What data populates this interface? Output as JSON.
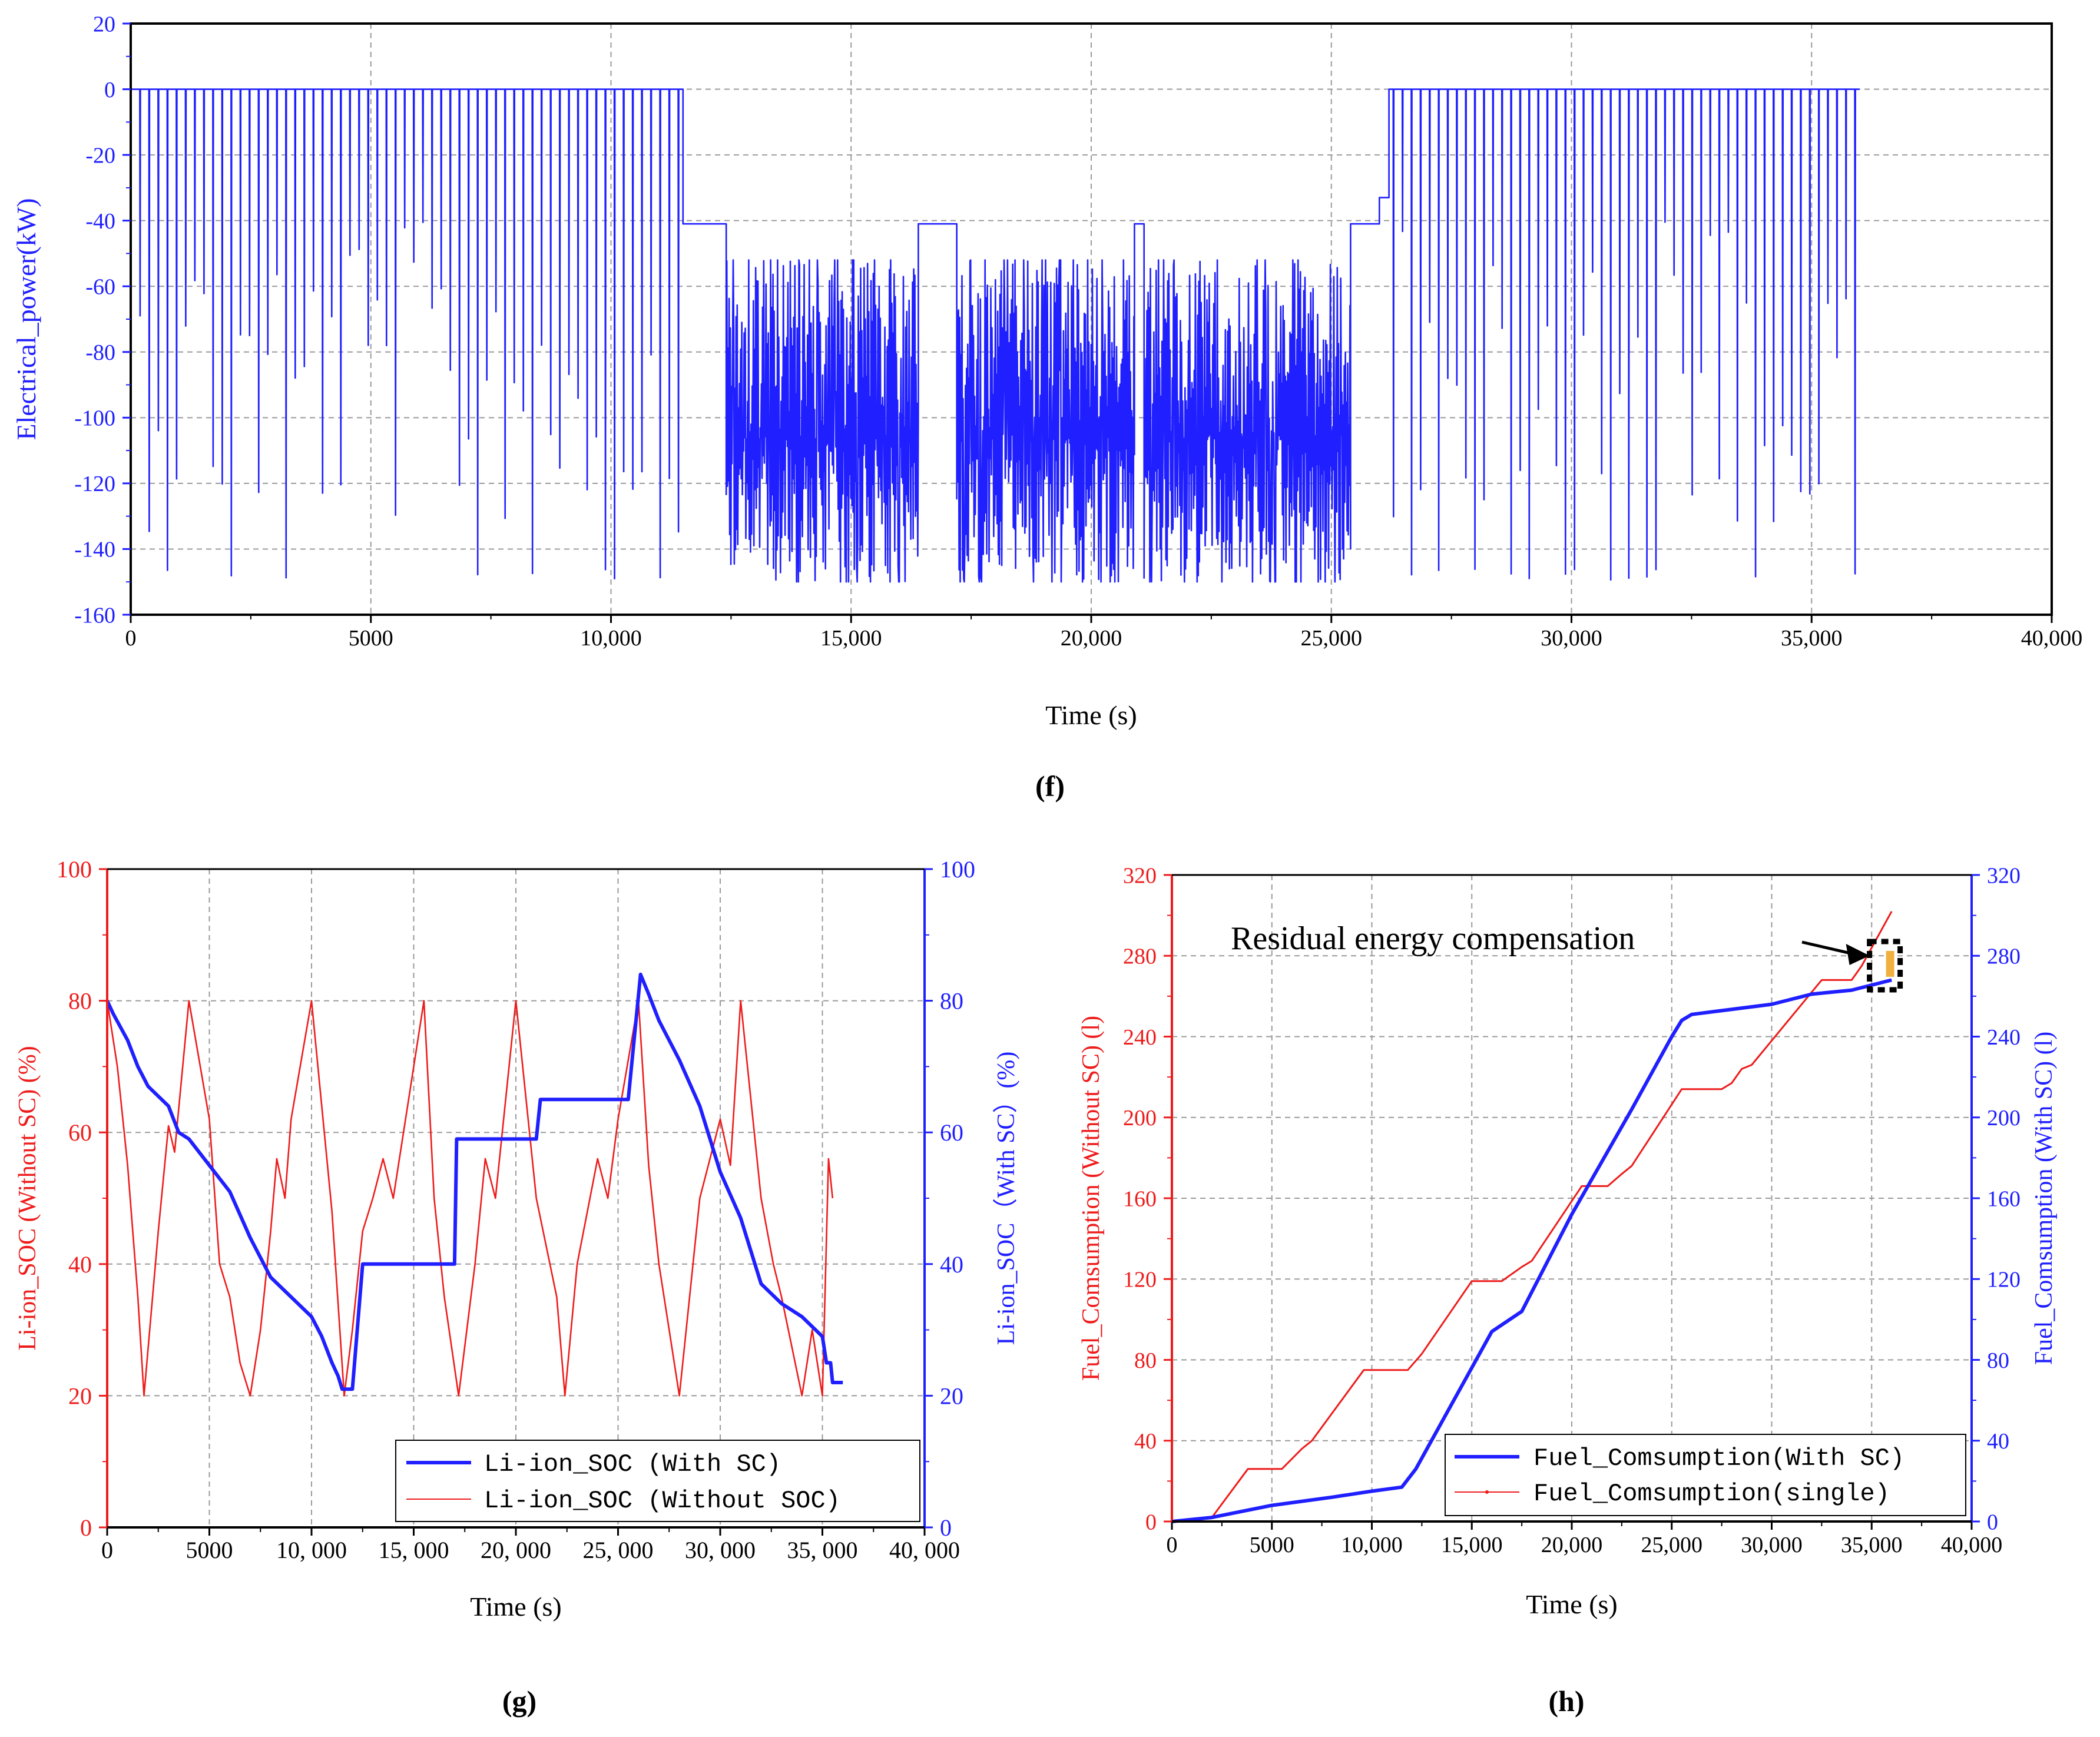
{
  "colors": {
    "red": "#ee1c1c",
    "blue": "#1f1fff",
    "black": "#000000",
    "grid": "#9a9a9a",
    "marker": "#f0b040"
  },
  "chart_data": [
    {
      "id": "f",
      "type": "line",
      "caption": "f",
      "xlabel": "Time (s)",
      "ylabel": "Electrical_power(kW)",
      "xlim": [
        0,
        40000
      ],
      "ylim": [
        -160,
        20
      ],
      "xticks": [
        0,
        5000,
        10000,
        15000,
        20000,
        25000,
        30000,
        35000,
        40000
      ],
      "xtick_labels": [
        "0",
        "5000",
        "10,000",
        "15,000",
        "20,000",
        "25,000",
        "30,000",
        "35,000",
        "40,000"
      ],
      "yticks": [
        -160,
        -140,
        -120,
        -100,
        -80,
        -60,
        -40,
        -20,
        0,
        20
      ],
      "ytick_labels": [
        "-160",
        "-140",
        "-120",
        "-100",
        "-80",
        "-60",
        "-40",
        "-20",
        "0",
        "20"
      ],
      "series": [
        {
          "name": "Electrical_power",
          "color": "#1f1fff",
          "description": "Spiky power demand: idle at 0 kW with negative spikes to -150 kW (0-11,500 s and 26,200-36,000 s); plateau at -41 kW with dense oscillation between -50 and -150 kW (11,500-25,400 s).",
          "spike_segments": [
            {
              "x_start": 100,
              "x_end": 11500,
              "baseline": 0,
              "spike_count": 60,
              "spike_min": -150
            },
            {
              "x_start": 26200,
              "x_end": 36000,
              "baseline": 0,
              "spike_count": 52,
              "spike_min": -150
            }
          ],
          "plateau_segments": [
            {
              "x_start": 11500,
              "x_end": 12400,
              "level": -41
            },
            {
              "x_start": 16400,
              "x_end": 17200,
              "level": -41
            },
            {
              "x_start": 20900,
              "x_end": 21100,
              "level": -41
            },
            {
              "x_start": 25400,
              "x_end": 26000,
              "level": -41
            },
            {
              "x_start": 26000,
              "x_end": 26200,
              "level": -33
            }
          ],
          "dense_segments": [
            {
              "x_start": 12400,
              "x_end": 16400,
              "min": -150,
              "max": -52
            },
            {
              "x_start": 17200,
              "x_end": 20900,
              "min": -150,
              "max": -52
            },
            {
              "x_start": 21100,
              "x_end": 25400,
              "min": -150,
              "max": -52
            }
          ]
        }
      ]
    },
    {
      "id": "g",
      "type": "line",
      "caption": "g",
      "xlabel": "Time (s)",
      "ylabel_left": "Li-ion_SOC (Without SC) (%)",
      "ylabel_right": "Li-ion_SOC（With SC）(%)",
      "xlim": [
        0,
        40000
      ],
      "ylim": [
        0,
        100
      ],
      "xticks": [
        0,
        5000,
        10000,
        15000,
        20000,
        25000,
        30000,
        35000,
        40000
      ],
      "xtick_labels": [
        "0",
        "5000",
        "10, 000",
        "15, 000",
        "20, 000",
        "25, 000",
        "30, 000",
        "35, 000",
        "40, 000"
      ],
      "yticks": [
        0,
        20,
        40,
        60,
        80,
        100
      ],
      "ytick_labels": [
        "0",
        "20",
        "40",
        "60",
        "80",
        "100"
      ],
      "legend": [
        "Li-ion_SOC (With SC)",
        "Li-ion_SOC (Without SOC)"
      ],
      "legend_position": "bottom-right",
      "series": [
        {
          "name": "Li-ion_SOC (With SC)",
          "color": "#1f1fff",
          "axis": "right",
          "x": [
            0,
            300,
            1000,
            1500,
            2000,
            3000,
            3500,
            4000,
            5000,
            6000,
            7000,
            8000,
            9000,
            10000,
            10500,
            11000,
            11300,
            11500,
            12000,
            12500,
            14000,
            16000,
            17000,
            17100,
            19000,
            20000,
            21000,
            21200,
            23000,
            25000,
            25500,
            26100,
            26500,
            27000,
            28000,
            29000,
            30000,
            31000,
            31500,
            32000,
            33000,
            34000,
            35000,
            35200,
            35400,
            35500,
            36000
          ],
          "y": [
            80,
            78,
            74,
            70,
            67,
            64,
            60,
            59,
            55,
            51,
            44,
            38,
            35,
            32,
            29,
            25,
            23,
            21,
            21,
            40,
            40,
            40,
            40,
            59,
            59,
            59,
            59,
            65,
            65,
            65,
            65,
            84,
            81,
            77,
            71,
            64,
            54,
            47,
            42,
            37,
            34,
            32,
            29,
            25,
            25,
            22,
            22
          ]
        },
        {
          "name": "Li-ion_SOC (Without SOC)",
          "color": "#ee1c1c",
          "axis": "left",
          "x": [
            0,
            500,
            1000,
            1500,
            1800,
            2500,
            3000,
            3300,
            4000,
            5000,
            5500,
            6000,
            6500,
            7000,
            7500,
            8000,
            8300,
            8700,
            9000,
            10000,
            11000,
            11600,
            12000,
            12500,
            13000,
            13500,
            14000,
            15500,
            16000,
            16500,
            17200,
            18000,
            18500,
            19000,
            20000,
            21000,
            22000,
            22400,
            23000,
            24000,
            24500,
            25000,
            26000,
            26500,
            27000,
            27500,
            28000,
            28500,
            29000,
            30000,
            30500,
            31000,
            32000,
            32600,
            33000,
            34000,
            34500,
            35000,
            35300,
            35500
          ],
          "y": [
            80,
            70,
            55,
            35,
            20,
            45,
            61,
            57,
            80,
            62,
            40,
            35,
            25,
            20,
            30,
            45,
            56,
            50,
            62,
            80,
            48,
            20,
            30,
            45,
            50,
            56,
            50,
            80,
            50,
            35,
            20,
            40,
            56,
            50,
            80,
            50,
            35,
            20,
            40,
            56,
            50,
            62,
            80,
            55,
            40,
            30,
            20,
            35,
            50,
            62,
            55,
            80,
            50,
            40,
            35,
            20,
            30,
            20,
            56,
            50
          ]
        }
      ]
    },
    {
      "id": "h",
      "type": "line",
      "caption": "h",
      "xlabel": "Time (s)",
      "ylabel_left": "Fuel_Comsumption (Without SC) (l)",
      "ylabel_right": "Fuel_Comsumption (With SC) (l)",
      "xlim": [
        0,
        40000
      ],
      "ylim": [
        0,
        320
      ],
      "xticks": [
        0,
        5000,
        10000,
        15000,
        20000,
        25000,
        30000,
        35000,
        40000
      ],
      "xtick_labels": [
        "0",
        "5000",
        "10,000",
        "15,000",
        "20,000",
        "25,000",
        "30,000",
        "35,000",
        "40,000"
      ],
      "yticks": [
        0,
        40,
        80,
        120,
        160,
        200,
        240,
        280,
        320
      ],
      "ytick_labels": [
        "0",
        "40",
        "80",
        "120",
        "160",
        "200",
        "240",
        "280",
        "320"
      ],
      "legend": [
        "Fuel_Comsumption(With SC)",
        "Fuel_Comsumption(single)"
      ],
      "legend_position": "bottom-right",
      "annotation": {
        "text": "Residual energy compensation",
        "x": 35600,
        "y": 276
      },
      "series": [
        {
          "name": "Fuel_Comsumption(With SC)",
          "color": "#1f1fff",
          "axis": "right",
          "x": [
            0,
            2000,
            5000,
            8000,
            10000,
            11500,
            12200,
            16000,
            17500,
            20000,
            23000,
            25000,
            25500,
            26000,
            30000,
            32000,
            34000,
            36000
          ],
          "y": [
            0,
            2,
            8,
            12,
            15,
            17,
            26,
            94,
            104,
            152,
            204,
            240,
            248,
            251,
            256,
            261,
            263,
            268
          ]
        },
        {
          "name": "Fuel_Comsumption(single)",
          "color": "#ee1c1c",
          "axis": "left",
          "x": [
            0,
            2000,
            3800,
            5500,
            6500,
            7000,
            9600,
            11800,
            12500,
            15000,
            16500,
            17500,
            18000,
            20500,
            21800,
            22500,
            23000,
            25500,
            27500,
            28000,
            28500,
            29000,
            32500,
            34000,
            34500,
            36000
          ],
          "y": [
            0,
            2,
            26,
            26,
            36,
            40,
            75,
            75,
            83,
            119,
            119,
            126,
            129,
            166,
            166,
            172,
            176,
            214,
            214,
            217,
            224,
            226,
            268,
            268,
            275,
            302
          ]
        }
      ]
    }
  ]
}
